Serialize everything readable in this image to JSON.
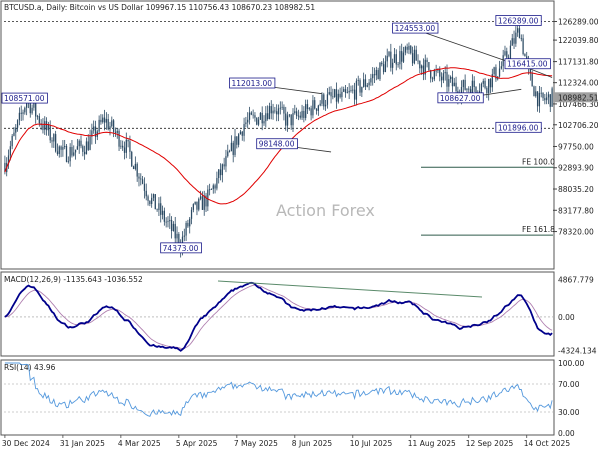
{
  "chart_data": {
    "type": "candlestick",
    "symbol_header": "BTCUSD.a, Daily: Bitcoin vs US Dollar  109967.15 110756.43 108670.23 108982.51",
    "watermark": "Action Forex",
    "price_axis": {
      "ylim": [
        70000,
        128000
      ],
      "ticks": [
        "126289.00",
        "122039.80",
        "117131.80",
        "112324.00",
        "107466.30",
        "102706.20",
        "97750.00",
        "92893.90",
        "88035.20",
        "83177.80",
        "78320.00"
      ],
      "current_price": "108982.51",
      "current_label": "108982.51"
    },
    "x_labels": [
      "30 Dec 2024",
      "31 Jan 2025",
      "4 Mar 2025",
      "5 Apr 2025",
      "7 May 2025",
      "8 Jun 2025",
      "10 Jul 2025",
      "11 Aug 2025",
      "12 Sep 2025",
      "14 Oct 2025"
    ],
    "annotations": [
      {
        "text": "126289.00",
        "date_index": 282,
        "price": 126289
      },
      {
        "text": "124553.00",
        "date_index": 225,
        "price": 124553
      },
      {
        "text": "112013.00",
        "date_index": 135,
        "price": 112013
      },
      {
        "text": "108571.00",
        "date_index": 0,
        "price": 108571
      },
      {
        "text": "116415.00",
        "date_index": 290,
        "price": 116415
      },
      {
        "text": "108627.00",
        "date_index": 250,
        "price": 108627
      },
      {
        "text": "98148.00",
        "date_index": 150,
        "price": 98148
      },
      {
        "text": "101896.00",
        "date_index": 282,
        "price": 101896
      },
      {
        "text": "74373.00",
        "date_index": 97,
        "price": 74373
      }
    ],
    "levels": [
      {
        "text": "101896.00",
        "price": 101896
      },
      {
        "text": "126289.00",
        "price": 126289
      }
    ],
    "fib_levels": [
      {
        "text": "FE 100.0",
        "price": 93000
      },
      {
        "text": "FE 161.8",
        "price": 77500
      }
    ],
    "macd": {
      "label": "MACD(12,26,9) -1135.643 -1036.552",
      "ticks": [
        "4867.779",
        "0.00",
        "-4324.134"
      ],
      "ylim": [
        -4800,
        5300
      ]
    },
    "rsi": {
      "label": "RSI(14) 43.96",
      "ticks": [
        "100.00",
        "70.00",
        "30.00",
        "0.00"
      ],
      "ylim": [
        0,
        100
      ]
    },
    "ma_color": "#e00000",
    "candle_color": "#2b4a63",
    "macd_color": "#00008b",
    "signal_color": "#b080b0",
    "rsi_color": "#5599dd",
    "bar_count": 303
  }
}
